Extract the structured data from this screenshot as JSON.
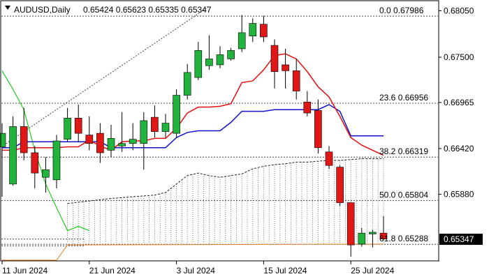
{
  "header": {
    "symbol_line": "AUDUSD,Daily",
    "ohlc_line": "0.65424 0.65623 0.65335 0.65347"
  },
  "colors": {
    "bull": "#22b33c",
    "bear": "#e01717",
    "red_line": "#e01010",
    "blue_line": "#1111cc",
    "green_line": "#22cc22",
    "orange_line": "#e67e22",
    "fib_line": "#444444",
    "cloud_line": "#222222",
    "price_tag": "#000000"
  },
  "chart_data": {
    "type": "candlestick",
    "title": "AUDUSD,Daily",
    "yaxis": {
      "ylim": [
        0.651,
        0.6816
      ],
      "ticks": [
        "0.68050",
        "0.67500",
        "0.66965",
        "0.66420",
        "0.65880"
      ]
    },
    "xaxis": {
      "ticks": [
        {
          "index": 0,
          "label": "11 Jun 2024"
        },
        {
          "index": 8,
          "label": "21 Jun 2024"
        },
        {
          "index": 16,
          "label": "3 Jul 2024"
        },
        {
          "index": 24,
          "label": "15 Jul 2024"
        },
        {
          "index": 32,
          "label": "25 Jul 2024"
        }
      ]
    },
    "candles": [
      {
        "o": 0.6644,
        "h": 0.6672,
        "l": 0.6585,
        "c": 0.666
      },
      {
        "o": 0.66,
        "h": 0.668,
        "l": 0.6598,
        "c": 0.6668
      },
      {
        "o": 0.6668,
        "h": 0.669,
        "l": 0.6628,
        "c": 0.6637
      },
      {
        "o": 0.6637,
        "h": 0.6645,
        "l": 0.6595,
        "c": 0.6613
      },
      {
        "o": 0.6608,
        "h": 0.6632,
        "l": 0.659,
        "c": 0.6617
      },
      {
        "o": 0.6605,
        "h": 0.6658,
        "l": 0.6595,
        "c": 0.6651
      },
      {
        "o": 0.6653,
        "h": 0.669,
        "l": 0.665,
        "c": 0.6678
      },
      {
        "o": 0.6678,
        "h": 0.6694,
        "l": 0.665,
        "c": 0.666
      },
      {
        "o": 0.6658,
        "h": 0.668,
        "l": 0.664,
        "c": 0.6648
      },
      {
        "o": 0.666,
        "h": 0.6672,
        "l": 0.6625,
        "c": 0.6637
      },
      {
        "o": 0.664,
        "h": 0.667,
        "l": 0.6632,
        "c": 0.6654
      },
      {
        "o": 0.6645,
        "h": 0.6685,
        "l": 0.6638,
        "c": 0.6648
      },
      {
        "o": 0.6648,
        "h": 0.6672,
        "l": 0.664,
        "c": 0.6653
      },
      {
        "o": 0.6648,
        "h": 0.6685,
        "l": 0.6617,
        "c": 0.6675
      },
      {
        "o": 0.6679,
        "h": 0.6693,
        "l": 0.6655,
        "c": 0.6662
      },
      {
        "o": 0.6662,
        "h": 0.6683,
        "l": 0.6655,
        "c": 0.6672
      },
      {
        "o": 0.666,
        "h": 0.6712,
        "l": 0.6655,
        "c": 0.6705
      },
      {
        "o": 0.6705,
        "h": 0.6742,
        "l": 0.67,
        "c": 0.6732
      },
      {
        "o": 0.6726,
        "h": 0.6768,
        "l": 0.6723,
        "c": 0.6758
      },
      {
        "o": 0.674,
        "h": 0.6776,
        "l": 0.6735,
        "c": 0.6748
      },
      {
        "o": 0.6741,
        "h": 0.6763,
        "l": 0.6737,
        "c": 0.6753
      },
      {
        "o": 0.6748,
        "h": 0.6761,
        "l": 0.6746,
        "c": 0.6758
      },
      {
        "o": 0.676,
        "h": 0.68,
        "l": 0.6756,
        "c": 0.6779
      },
      {
        "o": 0.6775,
        "h": 0.6796,
        "l": 0.6768,
        "c": 0.679
      },
      {
        "o": 0.6789,
        "h": 0.6799,
        "l": 0.6768,
        "c": 0.6774
      },
      {
        "o": 0.6764,
        "h": 0.6771,
        "l": 0.6713,
        "c": 0.6733
      },
      {
        "o": 0.6741,
        "h": 0.676,
        "l": 0.6713,
        "c": 0.6734
      },
      {
        "o": 0.6734,
        "h": 0.6748,
        "l": 0.67,
        "c": 0.671
      },
      {
        "o": 0.6697,
        "h": 0.671,
        "l": 0.668,
        "c": 0.6684
      },
      {
        "o": 0.6687,
        "h": 0.67,
        "l": 0.6636,
        "c": 0.6643
      },
      {
        "o": 0.6638,
        "h": 0.6645,
        "l": 0.6618,
        "c": 0.6622
      },
      {
        "o": 0.662,
        "h": 0.6622,
        "l": 0.6574,
        "c": 0.6578
      },
      {
        "o": 0.6578,
        "h": 0.6578,
        "l": 0.6514,
        "c": 0.6528
      },
      {
        "o": 0.6529,
        "h": 0.6548,
        "l": 0.6526,
        "c": 0.6542
      },
      {
        "o": 0.6541,
        "h": 0.6546,
        "l": 0.6525,
        "c": 0.6543
      },
      {
        "o": 0.6542,
        "h": 0.6562,
        "l": 0.6534,
        "c": 0.6535
      }
    ],
    "fib_levels": [
      {
        "label": "0.0",
        "value": 0.67986
      },
      {
        "label": "23.6",
        "value": 0.66956
      },
      {
        "label": "38.2",
        "value": 0.66319
      },
      {
        "label": "50.0",
        "value": 0.65804
      },
      {
        "label": "61.8",
        "value": 0.65288
      }
    ],
    "last_price": "0.65347",
    "red_line": [
      [
        0,
        0.664
      ],
      [
        1,
        0.664
      ],
      [
        2,
        0.6643
      ],
      [
        3,
        0.6643
      ],
      [
        4,
        0.6643
      ],
      [
        5,
        0.6643
      ],
      [
        6,
        0.6644
      ],
      [
        7,
        0.6644
      ],
      [
        8,
        0.6652
      ],
      [
        9,
        0.6645
      ],
      [
        10,
        0.664
      ],
      [
        11,
        0.665
      ],
      [
        12,
        0.6651
      ],
      [
        13,
        0.6651
      ],
      [
        14,
        0.6654
      ],
      [
        15,
        0.6654
      ],
      [
        16,
        0.6666
      ],
      [
        17,
        0.6684
      ],
      [
        18,
        0.6691
      ],
      [
        19,
        0.6691
      ],
      [
        20,
        0.6692
      ],
      [
        21,
        0.6695
      ],
      [
        22,
        0.672
      ],
      [
        23,
        0.6722
      ],
      [
        24,
        0.6735
      ],
      [
        25,
        0.6752
      ],
      [
        26,
        0.6754
      ],
      [
        27,
        0.6748
      ],
      [
        28,
        0.6733
      ],
      [
        29,
        0.6715
      ],
      [
        30,
        0.6703
      ],
      [
        31,
        0.668
      ],
      [
        32,
        0.6655
      ],
      [
        33,
        0.6646
      ],
      [
        34,
        0.664
      ],
      [
        35,
        0.6634
      ]
    ],
    "blue_line": [
      [
        0,
        0.6643
      ],
      [
        1,
        0.6643
      ],
      [
        2,
        0.665
      ],
      [
        3,
        0.665
      ],
      [
        4,
        0.665
      ],
      [
        5,
        0.665
      ],
      [
        6,
        0.665
      ],
      [
        7,
        0.665
      ],
      [
        8,
        0.665
      ],
      [
        9,
        0.665
      ],
      [
        10,
        0.6643
      ],
      [
        11,
        0.6643
      ],
      [
        12,
        0.6643
      ],
      [
        13,
        0.6643
      ],
      [
        14,
        0.6643
      ],
      [
        15,
        0.6643
      ],
      [
        16,
        0.6655
      ],
      [
        17,
        0.6661
      ],
      [
        18,
        0.6663
      ],
      [
        19,
        0.6663
      ],
      [
        20,
        0.6663
      ],
      [
        21,
        0.6673
      ],
      [
        22,
        0.6686
      ],
      [
        23,
        0.6686
      ],
      [
        24,
        0.6686
      ],
      [
        25,
        0.6688
      ],
      [
        26,
        0.6688
      ],
      [
        27,
        0.6688
      ],
      [
        28,
        0.6688
      ],
      [
        29,
        0.6688
      ],
      [
        30,
        0.6694
      ],
      [
        31,
        0.6686
      ],
      [
        32,
        0.6657
      ],
      [
        33,
        0.6657
      ],
      [
        34,
        0.6657
      ],
      [
        35,
        0.6657
      ]
    ],
    "green_line": [
      [
        0,
        0.6734
      ],
      [
        1,
        0.6712
      ],
      [
        2,
        0.6688
      ],
      [
        3,
        0.664
      ],
      [
        4,
        0.66
      ],
      [
        5,
        0.6572
      ],
      [
        6,
        0.6545
      ],
      [
        7,
        0.655
      ],
      [
        8,
        0.6545
      ]
    ],
    "orange_line": [
      [
        0,
        0.651
      ],
      [
        5,
        0.651
      ],
      [
        6,
        0.6528
      ],
      [
        35,
        0.6529
      ]
    ],
    "cloud_upper": [
      [
        6,
        0.6577
      ],
      [
        8,
        0.658
      ],
      [
        10,
        0.6583
      ],
      [
        12,
        0.6585
      ],
      [
        14,
        0.6587
      ],
      [
        15,
        0.659
      ],
      [
        16,
        0.66
      ],
      [
        17,
        0.661
      ],
      [
        18,
        0.6613
      ],
      [
        19,
        0.661
      ],
      [
        20,
        0.6608
      ],
      [
        21,
        0.661
      ],
      [
        22,
        0.6612
      ],
      [
        23,
        0.6618
      ],
      [
        24,
        0.6621
      ],
      [
        25,
        0.6623
      ],
      [
        26,
        0.6624
      ],
      [
        27,
        0.6626
      ],
      [
        28,
        0.6626
      ],
      [
        29,
        0.6627
      ],
      [
        30,
        0.6628
      ],
      [
        31,
        0.6628
      ],
      [
        32,
        0.6629
      ],
      [
        33,
        0.663
      ],
      [
        34,
        0.663
      ],
      [
        35,
        0.663
      ]
    ]
  }
}
